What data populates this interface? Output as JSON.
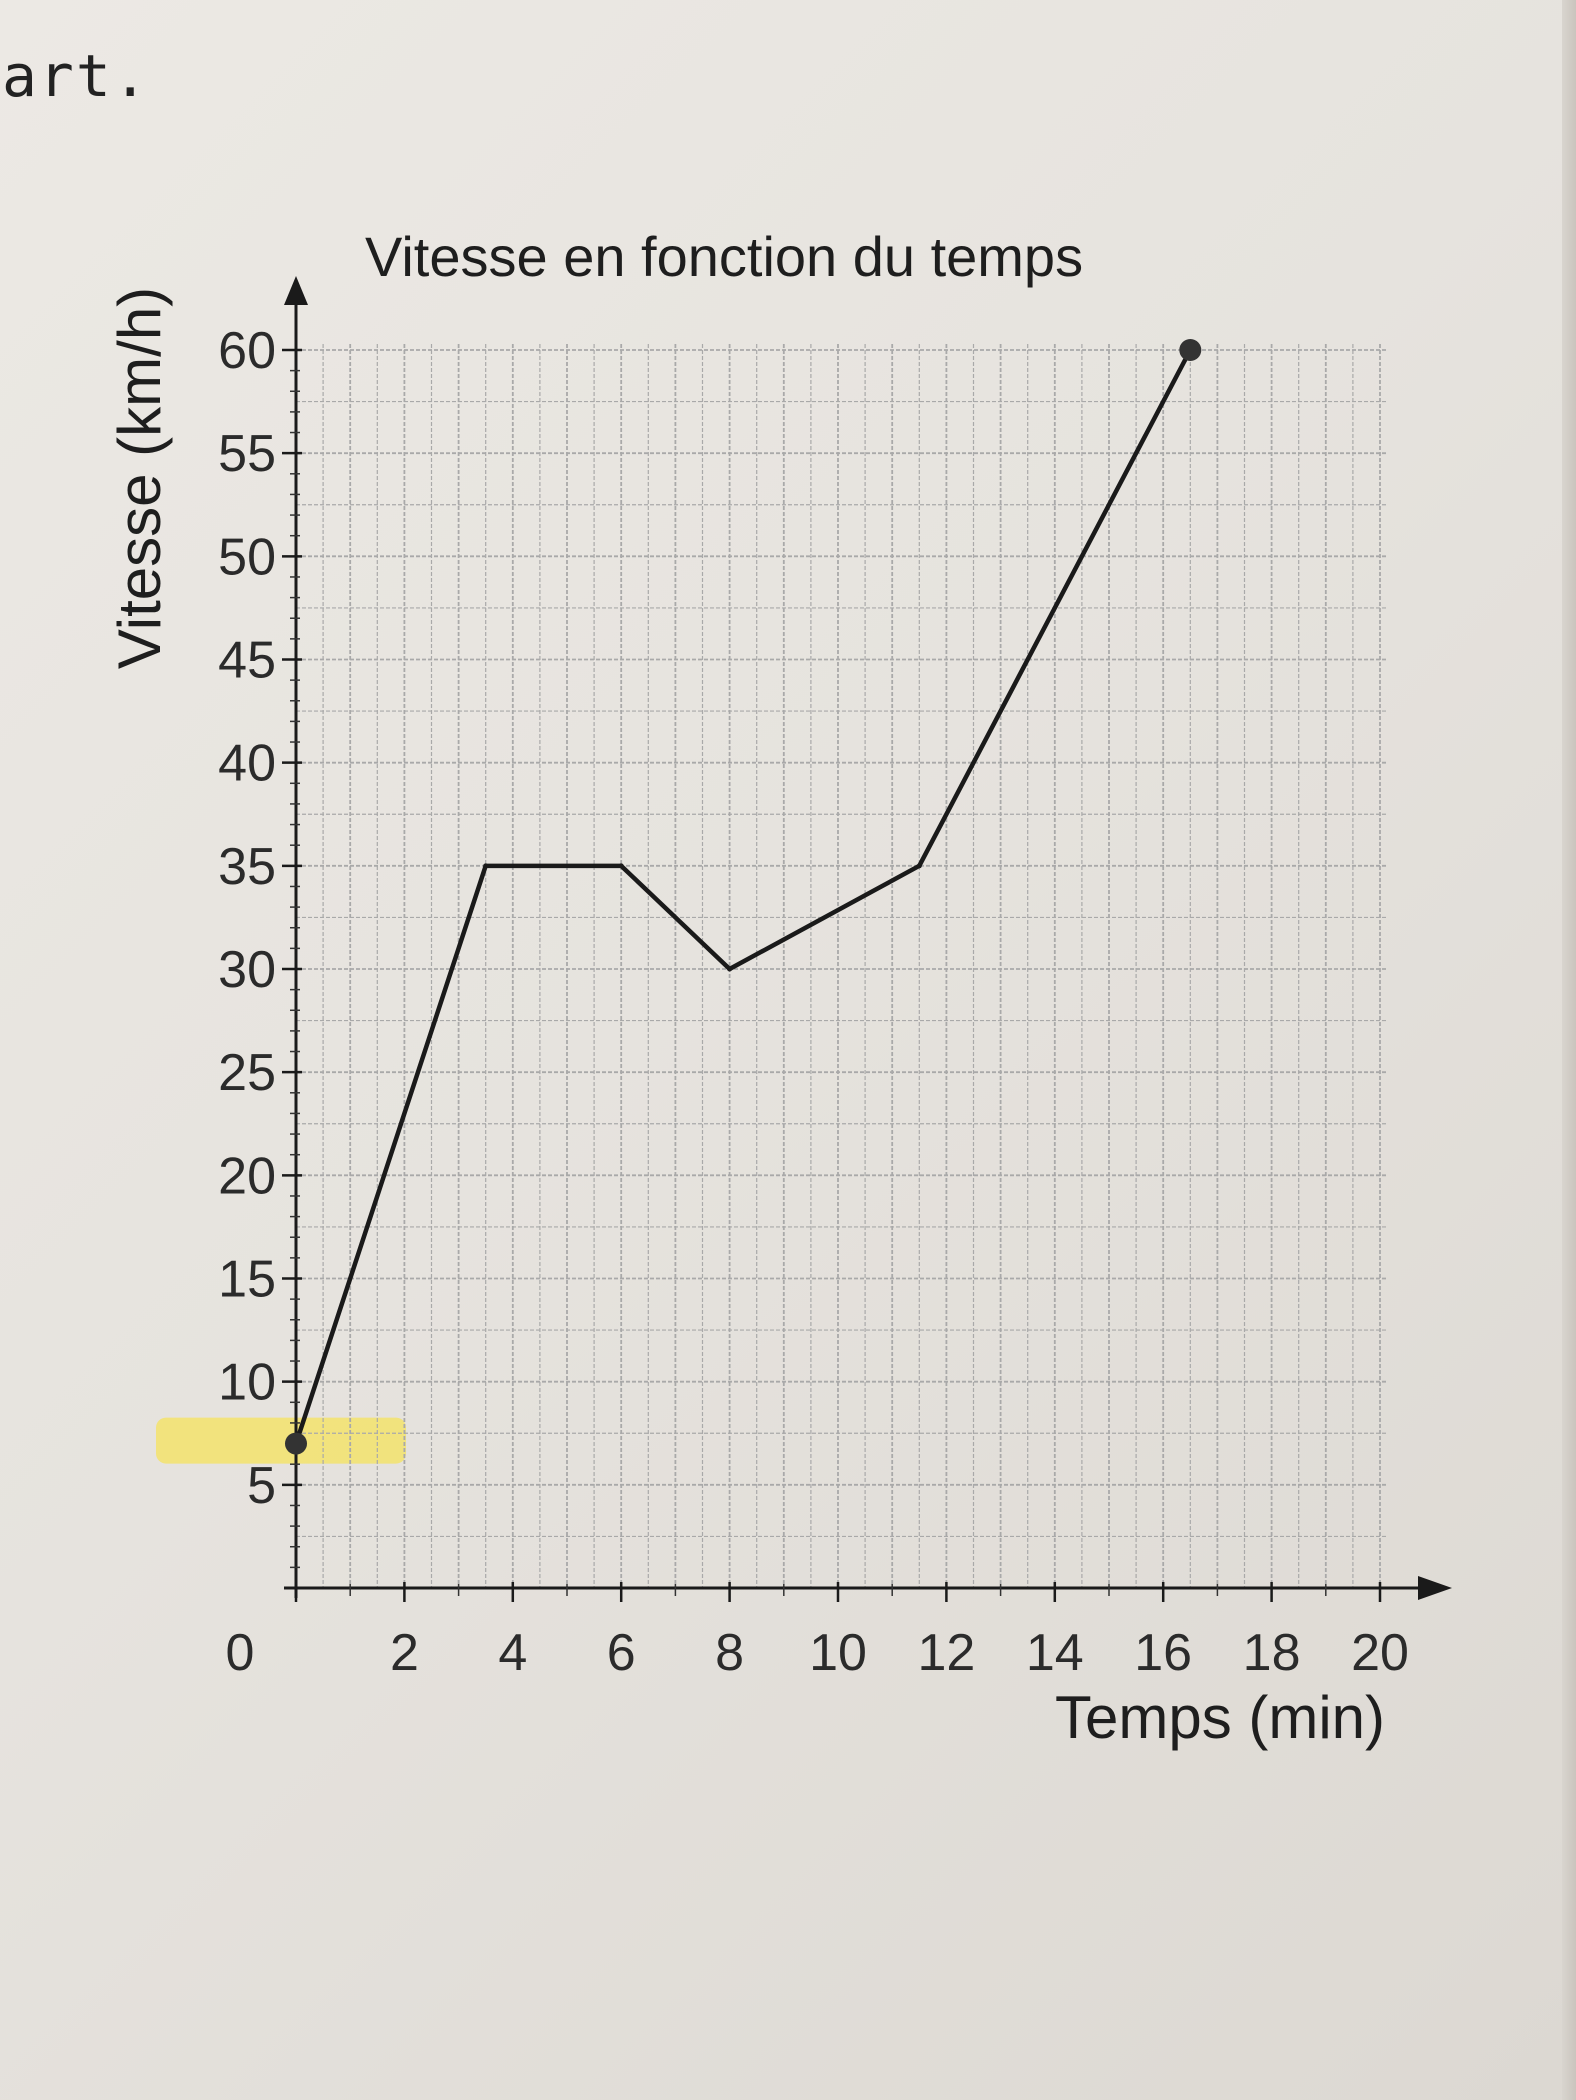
{
  "page": {
    "top_text": "art."
  },
  "chart_data": {
    "type": "line",
    "title": "Vitesse en fonction du temps",
    "xlabel": "Temps (min)",
    "ylabel": "Vitesse (km/h)",
    "xlim": [
      0,
      20
    ],
    "ylim": [
      0,
      60
    ],
    "x_ticks": [
      "0",
      "2",
      "4",
      "6",
      "8",
      "10",
      "12",
      "14",
      "16",
      "18",
      "20"
    ],
    "y_ticks": [
      "5",
      "10",
      "15",
      "20",
      "25",
      "30",
      "35",
      "40",
      "45",
      "50",
      "55",
      "60"
    ],
    "grid": true,
    "series": [
      {
        "x": [
          0,
          3.5,
          6,
          8,
          11.5,
          16.5
        ],
        "y": [
          7,
          35,
          35,
          30,
          35,
          60
        ]
      }
    ],
    "endpoints": [
      [
        0,
        7
      ],
      [
        16.5,
        60
      ]
    ],
    "highlight": {
      "around_y": 7,
      "color": "#f3e36c"
    },
    "line_color": "#1a1a1a",
    "grid_color": "#a9a9a9"
  }
}
